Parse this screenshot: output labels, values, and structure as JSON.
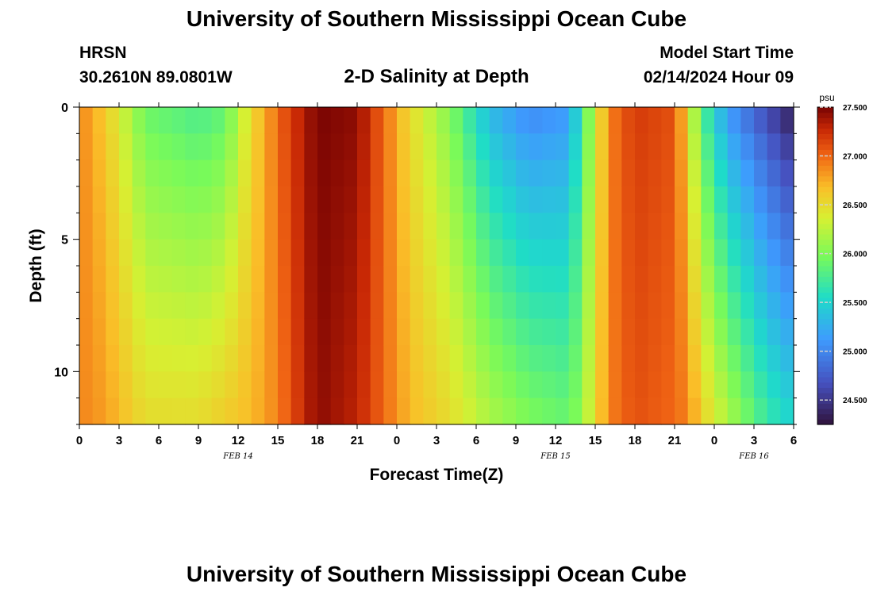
{
  "page": {
    "title": "University of Southern Mississippi Ocean Cube",
    "station": "HRSN",
    "coords": "30.2610N  89.0801W",
    "subtitle": "2-D Salinity at Depth",
    "model_start_label": "Model Start Time",
    "model_start_value": "02/14/2024 Hour 09",
    "footer_title": "University of Southern Mississippi Ocean Cube"
  },
  "chart_data": {
    "type": "heatmap",
    "title": "2-D Salinity at Depth",
    "xlabel": "Forecast Time(Z)",
    "ylabel": "Depth (ft)",
    "x_tick_labels": [
      "0",
      "3",
      "6",
      "9",
      "12",
      "15",
      "18",
      "21",
      "0",
      "3",
      "6",
      "9",
      "12",
      "15",
      "18",
      "21",
      "0",
      "3",
      "6"
    ],
    "date_labels": [
      {
        "text": "FEB 14",
        "at_hour": 12
      },
      {
        "text": "FEB 15",
        "at_hour": 36
      },
      {
        "text": "FEB 16",
        "at_hour": 51
      }
    ],
    "x_range_hours": [
      0,
      54
    ],
    "y_range_ft": [
      0,
      12
    ],
    "y_ticks": [
      0,
      5,
      10
    ],
    "y_tick_labels": [
      "0",
      "5",
      "10"
    ],
    "colorbar": {
      "unit": "psu",
      "range": [
        24.25,
        27.5
      ],
      "ticks": [
        24.5,
        25.0,
        25.5,
        26.0,
        26.5,
        27.0,
        27.5
      ],
      "tick_labels": [
        "24.500",
        "25.000",
        "25.500",
        "26.000",
        "26.500",
        "27.000",
        "27.500"
      ]
    },
    "time_step_hours": 1,
    "depth_bins_ft": 12,
    "salinity_keyframes": [
      {
        "hour": 0,
        "surface": 26.9,
        "bottom": 26.9
      },
      {
        "hour": 2,
        "surface": 26.6,
        "bottom": 26.8
      },
      {
        "hour": 5,
        "surface": 25.9,
        "bottom": 26.5
      },
      {
        "hour": 9,
        "surface": 25.75,
        "bottom": 26.5
      },
      {
        "hour": 11,
        "surface": 25.85,
        "bottom": 26.6
      },
      {
        "hour": 13,
        "surface": 26.5,
        "bottom": 26.7
      },
      {
        "hour": 15,
        "surface": 27.0,
        "bottom": 26.9
      },
      {
        "hour": 16,
        "surface": 27.2,
        "bottom": 27.1
      },
      {
        "hour": 18,
        "surface": 27.5,
        "bottom": 27.45
      },
      {
        "hour": 21,
        "surface": 27.45,
        "bottom": 27.3
      },
      {
        "hour": 23,
        "surface": 27.0,
        "bottom": 27.0
      },
      {
        "hour": 25,
        "surface": 26.5,
        "bottom": 26.7
      },
      {
        "hour": 28,
        "surface": 26.0,
        "bottom": 26.5
      },
      {
        "hour": 31,
        "surface": 25.3,
        "bottom": 26.2
      },
      {
        "hour": 34,
        "surface": 25.0,
        "bottom": 26.0
      },
      {
        "hour": 37,
        "surface": 25.1,
        "bottom": 25.9
      },
      {
        "hour": 38,
        "surface": 25.7,
        "bottom": 26.1
      },
      {
        "hour": 39,
        "surface": 26.3,
        "bottom": 26.5
      },
      {
        "hour": 40,
        "surface": 26.9,
        "bottom": 26.9
      },
      {
        "hour": 42,
        "surface": 27.2,
        "bottom": 27.1
      },
      {
        "hour": 45,
        "surface": 27.1,
        "bottom": 27.0
      },
      {
        "hour": 46,
        "surface": 26.5,
        "bottom": 26.9
      },
      {
        "hour": 47,
        "surface": 25.8,
        "bottom": 26.6
      },
      {
        "hour": 49,
        "surface": 25.1,
        "bottom": 26.2
      },
      {
        "hour": 52,
        "surface": 24.6,
        "bottom": 25.7
      },
      {
        "hour": 54,
        "surface": 24.3,
        "bottom": 25.5
      }
    ]
  }
}
